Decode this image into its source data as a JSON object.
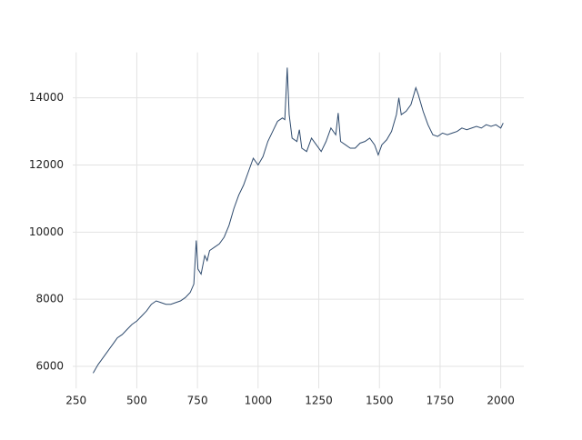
{
  "chart_data": {
    "type": "line",
    "x": [
      320,
      340,
      360,
      380,
      400,
      420,
      440,
      460,
      480,
      500,
      520,
      540,
      560,
      580,
      600,
      620,
      640,
      660,
      680,
      700,
      720,
      735,
      745,
      752,
      765,
      780,
      790,
      800,
      820,
      840,
      860,
      880,
      900,
      920,
      940,
      960,
      980,
      1000,
      1020,
      1040,
      1060,
      1080,
      1100,
      1110,
      1120,
      1128,
      1140,
      1160,
      1170,
      1180,
      1200,
      1220,
      1240,
      1260,
      1280,
      1300,
      1320,
      1330,
      1340,
      1360,
      1380,
      1400,
      1420,
      1440,
      1460,
      1480,
      1495,
      1510,
      1530,
      1550,
      1570,
      1580,
      1590,
      1610,
      1630,
      1650,
      1660,
      1680,
      1700,
      1720,
      1740,
      1760,
      1780,
      1800,
      1820,
      1840,
      1860,
      1880,
      1900,
      1920,
      1940,
      1960,
      1980,
      2000,
      2010
    ],
    "series": [
      {
        "color": "#2f4b6e",
        "values": [
          5800,
          6050,
          6250,
          6450,
          6650,
          6850,
          6950,
          7100,
          7250,
          7350,
          7500,
          7650,
          7850,
          7950,
          7900,
          7850,
          7850,
          7900,
          7950,
          8050,
          8200,
          8450,
          9750,
          8900,
          8750,
          9300,
          9150,
          9450,
          9550,
          9650,
          9850,
          10200,
          10700,
          11100,
          11400,
          11800,
          12200,
          12000,
          12250,
          12700,
          13000,
          13300,
          13400,
          13350,
          14900,
          13500,
          12800,
          12700,
          13050,
          12500,
          12400,
          12800,
          12600,
          12400,
          12700,
          13100,
          12900,
          13550,
          12700,
          12600,
          12500,
          12500,
          12650,
          12700,
          12800,
          12600,
          12300,
          12600,
          12750,
          13000,
          13500,
          14000,
          13500,
          13600,
          13800,
          14300,
          14100,
          13600,
          13200,
          12900,
          12850,
          12950,
          12900,
          12950,
          13000,
          13100,
          13050,
          13100,
          13150,
          13100,
          13200,
          13150,
          13200,
          13100,
          13250
        ]
      }
    ],
    "xlim": [
      236,
      2095
    ],
    "ylim": [
      5345,
      15355
    ],
    "xticks": [
      250,
      500,
      750,
      1000,
      1250,
      1500,
      1750,
      2000
    ],
    "yticks": [
      6000,
      8000,
      10000,
      12000,
      14000
    ],
    "grid": true
  }
}
